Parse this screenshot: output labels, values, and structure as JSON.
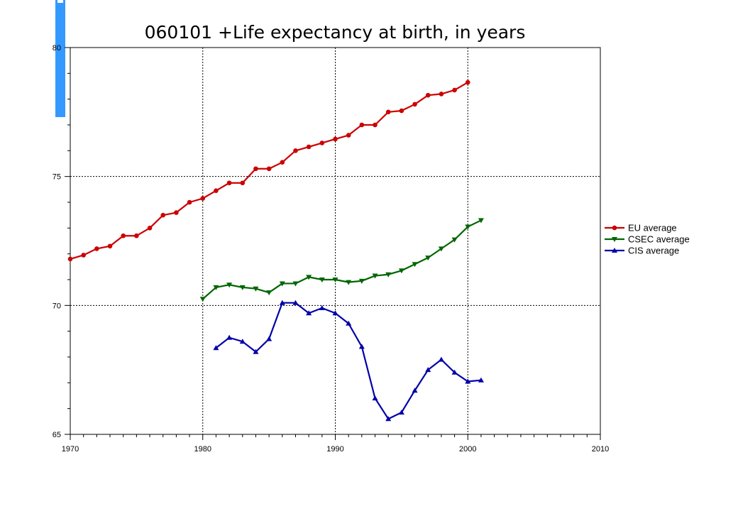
{
  "accent_bar_color": "#3399ff",
  "chart_data": {
    "type": "line",
    "title": "060101 +Life expectancy at birth, in years",
    "xlabel": "",
    "ylabel": "",
    "xlim": [
      1970,
      2010
    ],
    "ylim": [
      65,
      80
    ],
    "x_ticks": [
      "1970",
      "1980",
      "1990",
      "2000",
      "2010"
    ],
    "y_ticks": [
      "65",
      "70",
      "75",
      "80"
    ],
    "grid": true,
    "legend_position": "right",
    "series": [
      {
        "name": "EU average",
        "color": "#cc0000",
        "marker": "circle",
        "x": [
          1970,
          1971,
          1972,
          1973,
          1974,
          1975,
          1976,
          1977,
          1978,
          1979,
          1980,
          1981,
          1982,
          1983,
          1984,
          1985,
          1986,
          1987,
          1988,
          1989,
          1990,
          1991,
          1992,
          1993,
          1994,
          1995,
          1996,
          1997,
          1998,
          1999,
          2000
        ],
        "values": [
          71.8,
          71.95,
          72.2,
          72.3,
          72.7,
          72.7,
          73.0,
          73.5,
          73.6,
          74.0,
          74.15,
          74.45,
          74.75,
          74.75,
          75.3,
          75.3,
          75.55,
          76.0,
          76.15,
          76.3,
          76.45,
          76.6,
          77.0,
          77.0,
          77.5,
          77.55,
          77.8,
          78.15,
          78.2,
          78.35,
          78.65
        ]
      },
      {
        "name": "CSEC average",
        "color": "#006600",
        "marker": "triangle-down",
        "x": [
          1980,
          1981,
          1982,
          1983,
          1984,
          1985,
          1986,
          1987,
          1988,
          1989,
          1990,
          1991,
          1992,
          1993,
          1994,
          1995,
          1996,
          1997,
          1998,
          1999,
          2000,
          2001
        ],
        "values": [
          70.25,
          70.7,
          70.8,
          70.7,
          70.65,
          70.5,
          70.85,
          70.85,
          71.1,
          71.0,
          71.0,
          70.9,
          70.95,
          71.15,
          71.2,
          71.35,
          71.6,
          71.85,
          72.2,
          72.55,
          73.05,
          73.3
        ]
      },
      {
        "name": "CIS average",
        "color": "#0000aa",
        "marker": "triangle-up",
        "x": [
          1981,
          1982,
          1983,
          1984,
          1985,
          1986,
          1987,
          1988,
          1989,
          1990,
          1991,
          1992,
          1993,
          1994,
          1995,
          1996,
          1997,
          1998,
          1999,
          2000,
          2001
        ],
        "values": [
          68.35,
          68.75,
          68.6,
          68.2,
          68.7,
          70.1,
          70.1,
          69.7,
          69.9,
          69.7,
          69.3,
          68.4,
          66.4,
          65.6,
          65.85,
          66.7,
          67.5,
          67.9,
          67.4,
          67.05,
          67.1
        ]
      }
    ]
  }
}
